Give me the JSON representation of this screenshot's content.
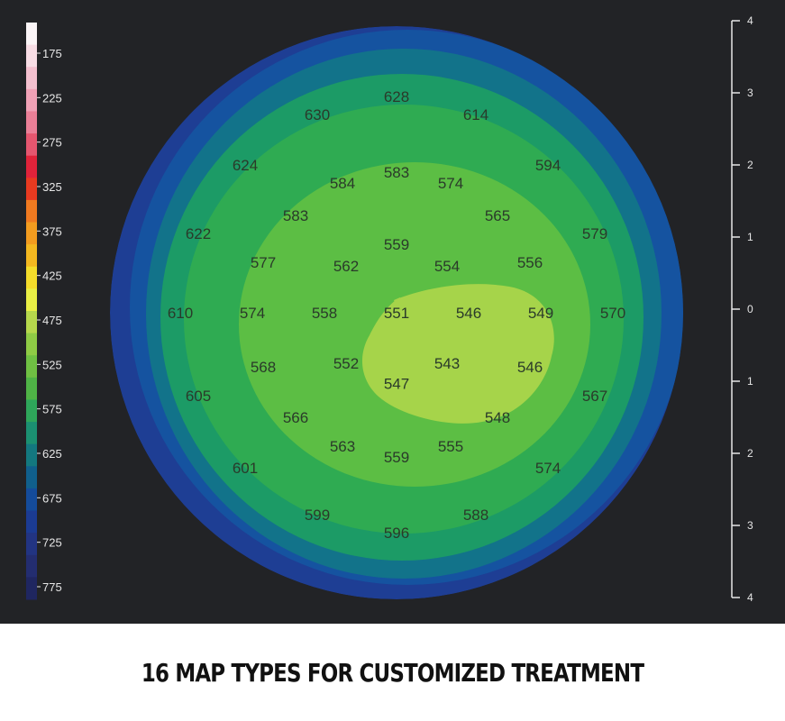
{
  "caption": "16 MAP TYPES FOR CUSTOMIZED TREATMENT",
  "chart_data": {
    "type": "heatmap",
    "title": "",
    "color_scale": {
      "labels": [
        "175",
        "225",
        "275",
        "325",
        "375",
        "425",
        "475",
        "525",
        "575",
        "625",
        "675",
        "725",
        "775"
      ],
      "colors": [
        "#fbf5f7",
        "#f8dde5",
        "#f4c0cf",
        "#f0a1b6",
        "#ea7f97",
        "#e5566f",
        "#e0233a",
        "#e83a20",
        "#f07a20",
        "#f39c1f",
        "#f4b820",
        "#f4dc2a",
        "#e9ef45",
        "#b6d84c",
        "#8fcb45",
        "#6fc043",
        "#4fb346",
        "#2ea65a",
        "#1b9071",
        "#13787f",
        "#105f8c",
        "#144b9a",
        "#1b3b93",
        "#223482",
        "#232d70",
        "#1f2660"
      ]
    },
    "axis": {
      "ticks": [
        "4",
        "3",
        "2",
        "1",
        "0",
        "1",
        "2",
        "3",
        "4"
      ]
    },
    "points": [
      {
        "value": "628",
        "x": 0.0,
        "y": 3.0
      },
      {
        "value": "630",
        "x": -1.1,
        "y": 2.75
      },
      {
        "value": "614",
        "x": 1.1,
        "y": 2.75
      },
      {
        "value": "624",
        "x": -2.1,
        "y": 2.05
      },
      {
        "value": "594",
        "x": 2.1,
        "y": 2.05
      },
      {
        "value": "584",
        "x": -0.75,
        "y": 1.8
      },
      {
        "value": "583",
        "x": 0.0,
        "y": 1.95
      },
      {
        "value": "574",
        "x": 0.75,
        "y": 1.8
      },
      {
        "value": "583",
        "x": -1.4,
        "y": 1.35
      },
      {
        "value": "565",
        "x": 1.4,
        "y": 1.35
      },
      {
        "value": "622",
        "x": -2.75,
        "y": 1.1
      },
      {
        "value": "579",
        "x": 2.75,
        "y": 1.1
      },
      {
        "value": "577",
        "x": -1.85,
        "y": 0.7
      },
      {
        "value": "562",
        "x": -0.7,
        "y": 0.65
      },
      {
        "value": "559",
        "x": 0.0,
        "y": 0.95
      },
      {
        "value": "554",
        "x": 0.7,
        "y": 0.65
      },
      {
        "value": "556",
        "x": 1.85,
        "y": 0.7
      },
      {
        "value": "610",
        "x": -3.0,
        "y": 0.0
      },
      {
        "value": "574",
        "x": -2.0,
        "y": 0.0
      },
      {
        "value": "558",
        "x": -1.0,
        "y": 0.0
      },
      {
        "value": "551",
        "x": 0.0,
        "y": 0.0
      },
      {
        "value": "546",
        "x": 1.0,
        "y": 0.0
      },
      {
        "value": "549",
        "x": 2.0,
        "y": 0.0
      },
      {
        "value": "570",
        "x": 3.0,
        "y": 0.0
      },
      {
        "value": "568",
        "x": -1.85,
        "y": -0.75
      },
      {
        "value": "552",
        "x": -0.7,
        "y": -0.7
      },
      {
        "value": "547",
        "x": 0.0,
        "y": -0.98
      },
      {
        "value": "543",
        "x": 0.7,
        "y": -0.7
      },
      {
        "value": "546",
        "x": 1.85,
        "y": -0.75
      },
      {
        "value": "605",
        "x": -2.75,
        "y": -1.15
      },
      {
        "value": "567",
        "x": 2.75,
        "y": -1.15
      },
      {
        "value": "566",
        "x": -1.4,
        "y": -1.45
      },
      {
        "value": "548",
        "x": 1.4,
        "y": -1.45
      },
      {
        "value": "563",
        "x": -0.75,
        "y": -1.85
      },
      {
        "value": "559",
        "x": 0.0,
        "y": -2.0
      },
      {
        "value": "555",
        "x": 0.75,
        "y": -1.85
      },
      {
        "value": "601",
        "x": -2.1,
        "y": -2.15
      },
      {
        "value": "574",
        "x": 2.1,
        "y": -2.15
      },
      {
        "value": "599",
        "x": -1.1,
        "y": -2.8
      },
      {
        "value": "588",
        "x": 1.1,
        "y": -2.8
      },
      {
        "value": "596",
        "x": 0.0,
        "y": -3.05
      }
    ],
    "zones": [
      {
        "name": "775-725",
        "color": "#1f3f94"
      },
      {
        "name": "725-675",
        "color": "#1652a0"
      },
      {
        "name": "675-625",
        "color": "#11708a"
      },
      {
        "name": "625-600",
        "color": "#1a9a6a"
      },
      {
        "name": "600-575",
        "color": "#2faa55"
      },
      {
        "name": "575-550",
        "color": "#5cbd45"
      },
      {
        "name": "550-525",
        "color": "#9fd048"
      }
    ]
  }
}
